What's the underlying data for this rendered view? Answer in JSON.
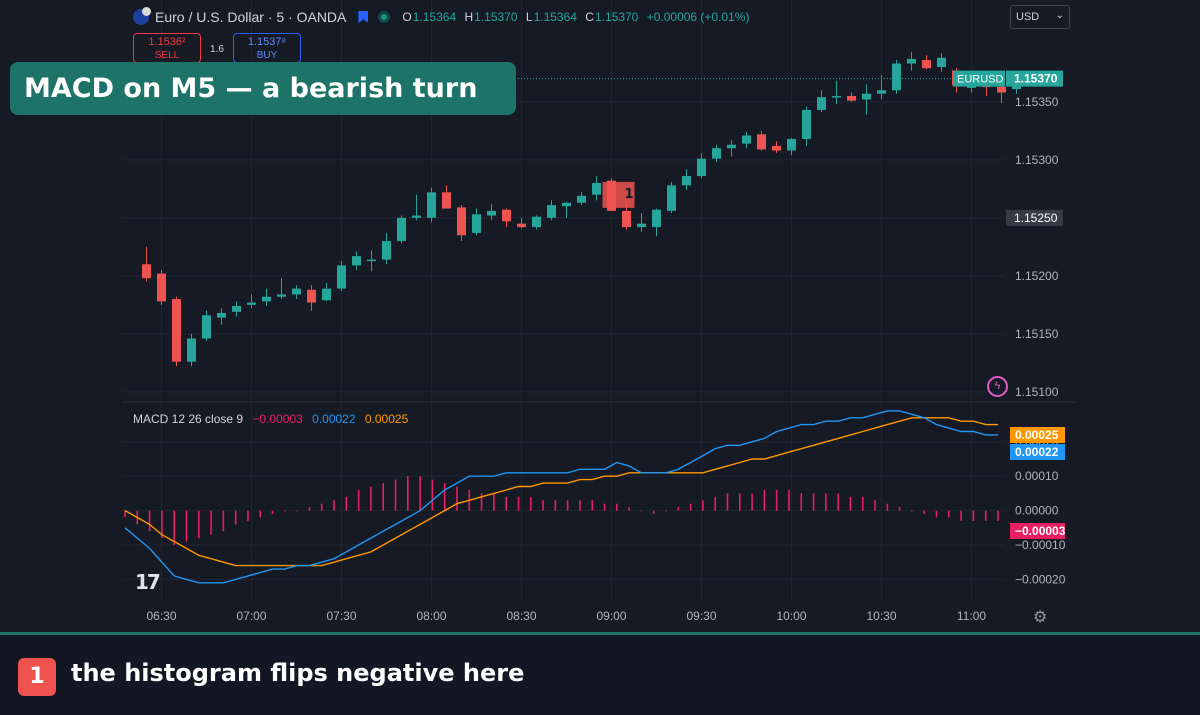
{
  "header": {
    "symbol": "Euro / U.S. Dollar · 5 · OANDA",
    "ohlc": [
      {
        "k": "O",
        "v": "1.15364"
      },
      {
        "k": "H",
        "v": "1.15370"
      },
      {
        "k": "L",
        "v": "1.15364"
      },
      {
        "k": "C",
        "v": "1.15370"
      }
    ],
    "change": "+0.00006 (+0.01%)",
    "currency": "USD"
  },
  "trade": {
    "sell_price": "1.1536²",
    "sell_label": "SELL",
    "spread": "1.6",
    "buy_price": "1.1537⁸",
    "buy_label": "BUY"
  },
  "banner": {
    "title": "MACD on M5  —  a bearish turn"
  },
  "macd_legend": {
    "label": "MACD 12 26 close 9",
    "histogram": "−0.00003",
    "macd": "0.00022",
    "signal": "0.00025"
  },
  "logo": "17",
  "annotation": {
    "badge": "1",
    "text": "the histogram flips negative here"
  },
  "colors": {
    "up": "#26a69a",
    "down": "#ef5350",
    "macd_line": "#2196f3",
    "signal_line": "#ff9800",
    "histogram": "#e91e63",
    "banner": "#1d7368",
    "background": "#161a25"
  },
  "icons": [
    "eu-flag-icon",
    "market-flag-icon",
    "status-dot-icon",
    "chevron-down-icon",
    "tradingview-logo-icon",
    "bolt-icon",
    "gear-icon",
    "arrow-down-marker-icon"
  ],
  "chart_data": [
    {
      "type": "candlestick",
      "title": "Euro / U.S. Dollar · 5 · OANDA",
      "symbol_tag": "EURUSD",
      "last_price": "1.15370",
      "crosshair_price": "1.15250",
      "ylim": [
        1.15093,
        1.15405
      ],
      "y_ticks": [
        "1.15350",
        "1.15300",
        "1.15250",
        "1.15200",
        "1.15150",
        "1.15100"
      ],
      "x_ticks": [
        "06:30",
        "07:00",
        "07:30",
        "08:00",
        "08:30",
        "09:00",
        "09:30",
        "10:00",
        "10:30",
        "11:00"
      ],
      "x_tick_values": [
        "06:30",
        "07:00",
        "07:30",
        "08:00",
        "08:30",
        "09:00",
        "09:30",
        "10:00",
        "10:30",
        "11:00"
      ],
      "marker": {
        "time": "09:00",
        "label": "1",
        "shape": "arrow-down"
      },
      "candles": [
        {
          "t": "06:25",
          "o": 1.1521,
          "h": 1.15225,
          "l": 1.15195,
          "c": 1.15198
        },
        {
          "t": "06:30",
          "o": 1.15202,
          "h": 1.15205,
          "l": 1.15175,
          "c": 1.15178
        },
        {
          "t": "06:35",
          "o": 1.1518,
          "h": 1.15182,
          "l": 1.15122,
          "c": 1.15126
        },
        {
          "t": "06:40",
          "o": 1.15126,
          "h": 1.1515,
          "l": 1.15122,
          "c": 1.15146
        },
        {
          "t": "06:45",
          "o": 1.15146,
          "h": 1.1517,
          "l": 1.15144,
          "c": 1.15166
        },
        {
          "t": "06:50",
          "o": 1.15164,
          "h": 1.15172,
          "l": 1.15158,
          "c": 1.15168
        },
        {
          "t": "06:55",
          "o": 1.15169,
          "h": 1.15178,
          "l": 1.15165,
          "c": 1.15174
        },
        {
          "t": "07:00",
          "o": 1.15175,
          "h": 1.15184,
          "l": 1.15172,
          "c": 1.15177
        },
        {
          "t": "07:05",
          "o": 1.15178,
          "h": 1.15189,
          "l": 1.15174,
          "c": 1.15182
        },
        {
          "t": "07:10",
          "o": 1.15182,
          "h": 1.15198,
          "l": 1.1518,
          "c": 1.15184
        },
        {
          "t": "07:15",
          "o": 1.15184,
          "h": 1.15192,
          "l": 1.1518,
          "c": 1.15189
        },
        {
          "t": "07:20",
          "o": 1.15188,
          "h": 1.15192,
          "l": 1.1517,
          "c": 1.15177
        },
        {
          "t": "07:25",
          "o": 1.15179,
          "h": 1.15194,
          "l": 1.15178,
          "c": 1.15189
        },
        {
          "t": "07:30",
          "o": 1.15189,
          "h": 1.15213,
          "l": 1.15187,
          "c": 1.15209
        },
        {
          "t": "07:35",
          "o": 1.15209,
          "h": 1.15221,
          "l": 1.15205,
          "c": 1.15217
        },
        {
          "t": "07:40",
          "o": 1.15214,
          "h": 1.15222,
          "l": 1.15204,
          "c": 1.15214
        },
        {
          "t": "07:45",
          "o": 1.15214,
          "h": 1.15237,
          "l": 1.1521,
          "c": 1.1523
        },
        {
          "t": "07:50",
          "o": 1.1523,
          "h": 1.15252,
          "l": 1.15228,
          "c": 1.1525
        },
        {
          "t": "07:55",
          "o": 1.1525,
          "h": 1.1527,
          "l": 1.15248,
          "c": 1.15252
        },
        {
          "t": "08:00",
          "o": 1.1525,
          "h": 1.15276,
          "l": 1.15246,
          "c": 1.15272
        },
        {
          "t": "08:05",
          "o": 1.15272,
          "h": 1.15278,
          "l": 1.15258,
          "c": 1.15258
        },
        {
          "t": "08:10",
          "o": 1.15259,
          "h": 1.15261,
          "l": 1.1523,
          "c": 1.15235
        },
        {
          "t": "08:15",
          "o": 1.15237,
          "h": 1.15258,
          "l": 1.15235,
          "c": 1.15253
        },
        {
          "t": "08:20",
          "o": 1.15252,
          "h": 1.15262,
          "l": 1.15248,
          "c": 1.15256
        },
        {
          "t": "08:25",
          "o": 1.15257,
          "h": 1.15258,
          "l": 1.15242,
          "c": 1.15247
        },
        {
          "t": "08:30",
          "o": 1.15245,
          "h": 1.1525,
          "l": 1.15241,
          "c": 1.15242
        },
        {
          "t": "08:35",
          "o": 1.15242,
          "h": 1.15252,
          "l": 1.1524,
          "c": 1.15251
        },
        {
          "t": "08:40",
          "o": 1.1525,
          "h": 1.15265,
          "l": 1.15248,
          "c": 1.15261
        },
        {
          "t": "08:45",
          "o": 1.1526,
          "h": 1.15264,
          "l": 1.1525,
          "c": 1.15263
        },
        {
          "t": "08:50",
          "o": 1.15263,
          "h": 1.15272,
          "l": 1.15261,
          "c": 1.15269
        },
        {
          "t": "08:55",
          "o": 1.1527,
          "h": 1.15286,
          "l": 1.15265,
          "c": 1.1528
        },
        {
          "t": "09:00",
          "o": 1.15282,
          "h": 1.15284,
          "l": 1.15256,
          "c": 1.15256
        },
        {
          "t": "09:05",
          "o": 1.15256,
          "h": 1.15264,
          "l": 1.1524,
          "c": 1.15242
        },
        {
          "t": "09:10",
          "o": 1.15242,
          "h": 1.15254,
          "l": 1.15238,
          "c": 1.15245
        },
        {
          "t": "09:15",
          "o": 1.15242,
          "h": 1.15258,
          "l": 1.15234,
          "c": 1.15257
        },
        {
          "t": "09:20",
          "o": 1.15256,
          "h": 1.15281,
          "l": 1.15254,
          "c": 1.15278
        },
        {
          "t": "09:25",
          "o": 1.15278,
          "h": 1.15292,
          "l": 1.15274,
          "c": 1.15286
        },
        {
          "t": "09:30",
          "o": 1.15286,
          "h": 1.15306,
          "l": 1.15284,
          "c": 1.15301
        },
        {
          "t": "09:35",
          "o": 1.15301,
          "h": 1.15313,
          "l": 1.15298,
          "c": 1.1531
        },
        {
          "t": "09:40",
          "o": 1.1531,
          "h": 1.15317,
          "l": 1.15303,
          "c": 1.15313
        },
        {
          "t": "09:45",
          "o": 1.15314,
          "h": 1.15324,
          "l": 1.1531,
          "c": 1.15321
        },
        {
          "t": "09:50",
          "o": 1.15322,
          "h": 1.15325,
          "l": 1.15308,
          "c": 1.15309
        },
        {
          "t": "09:55",
          "o": 1.15312,
          "h": 1.15316,
          "l": 1.15306,
          "c": 1.15308
        },
        {
          "t": "10:00",
          "o": 1.15308,
          "h": 1.15319,
          "l": 1.15304,
          "c": 1.15318
        },
        {
          "t": "10:05",
          "o": 1.15318,
          "h": 1.15346,
          "l": 1.15312,
          "c": 1.15343
        },
        {
          "t": "10:10",
          "o": 1.15343,
          "h": 1.1536,
          "l": 1.15341,
          "c": 1.15354
        },
        {
          "t": "10:15",
          "o": 1.15354,
          "h": 1.15368,
          "l": 1.15348,
          "c": 1.15355
        },
        {
          "t": "10:20",
          "o": 1.15355,
          "h": 1.15358,
          "l": 1.1535,
          "c": 1.15351
        },
        {
          "t": "10:25",
          "o": 1.15352,
          "h": 1.15365,
          "l": 1.15339,
          "c": 1.15357
        },
        {
          "t": "10:30",
          "o": 1.15357,
          "h": 1.15373,
          "l": 1.15352,
          "c": 1.1536
        },
        {
          "t": "10:35",
          "o": 1.1536,
          "h": 1.15386,
          "l": 1.15357,
          "c": 1.15383
        },
        {
          "t": "10:40",
          "o": 1.15383,
          "h": 1.15393,
          "l": 1.15377,
          "c": 1.15387
        },
        {
          "t": "10:45",
          "o": 1.15386,
          "h": 1.1539,
          "l": 1.15378,
          "c": 1.15379
        },
        {
          "t": "10:50",
          "o": 1.1538,
          "h": 1.15392,
          "l": 1.15376,
          "c": 1.15388
        },
        {
          "t": "10:55",
          "o": 1.15377,
          "h": 1.15379,
          "l": 1.15358,
          "c": 1.15364
        },
        {
          "t": "11:00",
          "o": 1.15362,
          "h": 1.15366,
          "l": 1.15358,
          "c": 1.15364
        },
        {
          "t": "11:05",
          "o": 1.15364,
          "h": 1.15367,
          "l": 1.15355,
          "c": 1.15363
        },
        {
          "t": "11:10",
          "o": 1.15363,
          "h": 1.15366,
          "l": 1.15349,
          "c": 1.15358
        },
        {
          "t": "11:15",
          "o": 1.15361,
          "h": 1.15377,
          "l": 1.15357,
          "c": 1.1537
        },
        {
          "t": "11:20",
          "o": 1.15364,
          "h": 1.1537,
          "l": 1.15364,
          "c": 1.1537
        }
      ]
    },
    {
      "type": "line",
      "title": "MACD 12 26 close 9",
      "ylim": [
        -0.00026,
        0.00031
      ],
      "y_ticks": [
        "0.00020",
        "0.00010",
        "0.00000",
        "-0.00010",
        "-0.00020"
      ],
      "y_tick_values": [
        0.0002,
        0.0001,
        0.0,
        -0.0001,
        -0.0002
      ],
      "value_tags": [
        {
          "series": "signal",
          "label": "0.00025"
        },
        {
          "series": "macd",
          "label": "0.00022"
        },
        {
          "series": "histogram",
          "label": "-0.00003"
        }
      ],
      "series": [
        {
          "name": "MACD",
          "role": "macd",
          "values": [
            -5e-05,
            -8e-05,
            -0.00011,
            -0.00015,
            -0.00019,
            -0.0002,
            -0.00021,
            -0.00021,
            -0.00021,
            -0.0002,
            -0.00019,
            -0.00018,
            -0.00017,
            -0.00017,
            -0.00016,
            -0.00016,
            -0.00015,
            -0.00014,
            -0.00012,
            -0.0001,
            -8e-05,
            -6e-05,
            -4e-05,
            -2e-05,
            0.0,
            3e-05,
            6e-05,
            8e-05,
            0.0001,
            0.0001,
            0.0001,
            0.00011,
            0.00011,
            0.00011,
            0.00011,
            0.00011,
            0.00011,
            0.00012,
            0.00012,
            0.00012,
            0.00014,
            0.00013,
            0.00011,
            0.00011,
            0.00011,
            0.00012,
            0.00014,
            0.00016,
            0.00018,
            0.00019,
            0.00019,
            0.0002,
            0.00021,
            0.00023,
            0.00024,
            0.00025,
            0.00025,
            0.00026,
            0.00026,
            0.00027,
            0.00027,
            0.00028,
            0.00029,
            0.00029,
            0.00028,
            0.00027,
            0.00025,
            0.00024,
            0.00023,
            0.00023,
            0.00022,
            0.00022
          ]
        },
        {
          "name": "Signal",
          "role": "signal",
          "values": [
            0.0,
            -2e-05,
            -4e-05,
            -7e-05,
            -9e-05,
            -0.00011,
            -0.00013,
            -0.00014,
            -0.00015,
            -0.00016,
            -0.00016,
            -0.00016,
            -0.00016,
            -0.00016,
            -0.00016,
            -0.00016,
            -0.00016,
            -0.00015,
            -0.00014,
            -0.00013,
            -0.00012,
            -0.0001,
            -8e-05,
            -6e-05,
            -4e-05,
            -2e-05,
            0.0,
            2e-05,
            3e-05,
            4e-05,
            5e-05,
            6e-05,
            7e-05,
            7e-05,
            8e-05,
            8e-05,
            8e-05,
            9e-05,
            9e-05,
            0.0001,
            0.0001,
            0.00011,
            0.00011,
            0.00011,
            0.00011,
            0.00011,
            0.00011,
            0.00011,
            0.00012,
            0.00013,
            0.00014,
            0.00015,
            0.00015,
            0.00016,
            0.00017,
            0.00018,
            0.00019,
            0.0002,
            0.00021,
            0.00022,
            0.00023,
            0.00024,
            0.00025,
            0.00026,
            0.00027,
            0.00027,
            0.00027,
            0.00027,
            0.00026,
            0.00026,
            0.00025,
            0.00025
          ]
        },
        {
          "name": "Histogram",
          "role": "histogram",
          "values": [
            -2e-05,
            -4e-05,
            -6e-05,
            -8e-05,
            -0.0001,
            -9e-05,
            -8e-05,
            -7e-05,
            -6e-05,
            -4e-05,
            -3e-05,
            -2e-05,
            -1e-05,
            0.0,
            0.0,
            1e-05,
            2e-05,
            3e-05,
            4e-05,
            6e-05,
            7e-05,
            8e-05,
            9e-05,
            0.0001,
            0.0001,
            9e-05,
            8e-05,
            7e-05,
            6e-05,
            5e-05,
            5e-05,
            4e-05,
            4e-05,
            4e-05,
            3e-05,
            3e-05,
            3e-05,
            3e-05,
            3e-05,
            2e-05,
            2e-05,
            1e-05,
            0.0,
            -1e-05,
            0.0,
            1e-05,
            2e-05,
            3e-05,
            4e-05,
            5e-05,
            5e-05,
            5e-05,
            6e-05,
            6e-05,
            6e-05,
            5e-05,
            5e-05,
            5e-05,
            5e-05,
            4e-05,
            4e-05,
            3e-05,
            2e-05,
            1e-05,
            0.0,
            -1e-05,
            -2e-05,
            -2e-05,
            -3e-05,
            -3e-05,
            -3e-05,
            -3e-05
          ]
        }
      ]
    }
  ]
}
